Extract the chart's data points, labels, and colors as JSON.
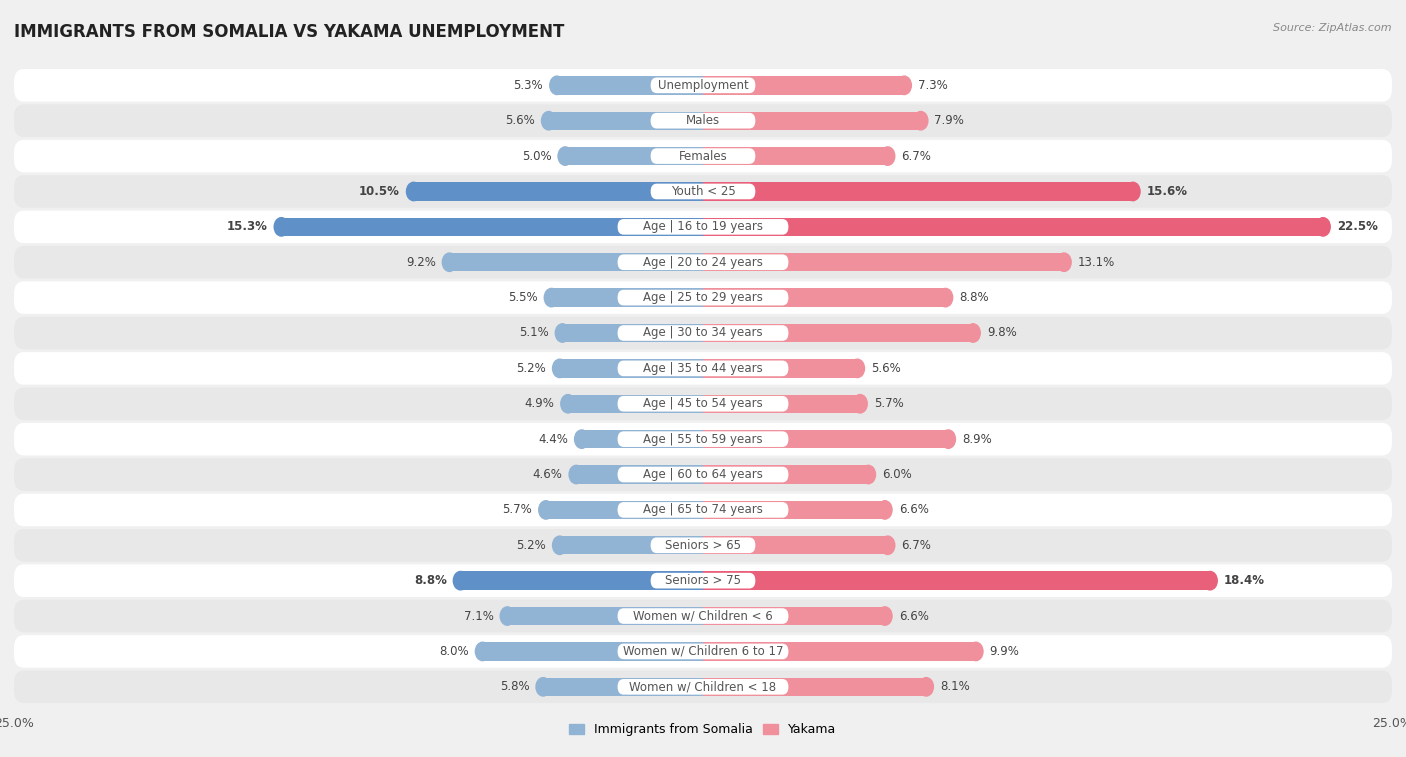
{
  "title": "IMMIGRANTS FROM SOMALIA VS YAKAMA UNEMPLOYMENT",
  "source": "Source: ZipAtlas.com",
  "categories": [
    "Unemployment",
    "Males",
    "Females",
    "Youth < 25",
    "Age | 16 to 19 years",
    "Age | 20 to 24 years",
    "Age | 25 to 29 years",
    "Age | 30 to 34 years",
    "Age | 35 to 44 years",
    "Age | 45 to 54 years",
    "Age | 55 to 59 years",
    "Age | 60 to 64 years",
    "Age | 65 to 74 years",
    "Seniors > 65",
    "Seniors > 75",
    "Women w/ Children < 6",
    "Women w/ Children 6 to 17",
    "Women w/ Children < 18"
  ],
  "somalia_values": [
    5.3,
    5.6,
    5.0,
    10.5,
    15.3,
    9.2,
    5.5,
    5.1,
    5.2,
    4.9,
    4.4,
    4.6,
    5.7,
    5.2,
    8.8,
    7.1,
    8.0,
    5.8
  ],
  "yakama_values": [
    7.3,
    7.9,
    6.7,
    15.6,
    22.5,
    13.1,
    8.8,
    9.8,
    5.6,
    5.7,
    8.9,
    6.0,
    6.6,
    6.7,
    18.4,
    6.6,
    9.9,
    8.1
  ],
  "somalia_color": "#92b4d4",
  "yakama_color": "#f0909c",
  "highlight_rows": [
    3,
    4,
    14
  ],
  "highlight_somalia_color": "#6090c8",
  "highlight_yakama_color": "#e8607a",
  "xlim": 25.0,
  "bg_color": "#f0f0f0",
  "row_bg_white": "#ffffff",
  "row_bg_gray": "#e8e8e8",
  "legend_somalia": "Immigrants from Somalia",
  "legend_yakama": "Yakama",
  "title_fontsize": 12,
  "label_fontsize": 8.5,
  "value_fontsize": 8.5
}
